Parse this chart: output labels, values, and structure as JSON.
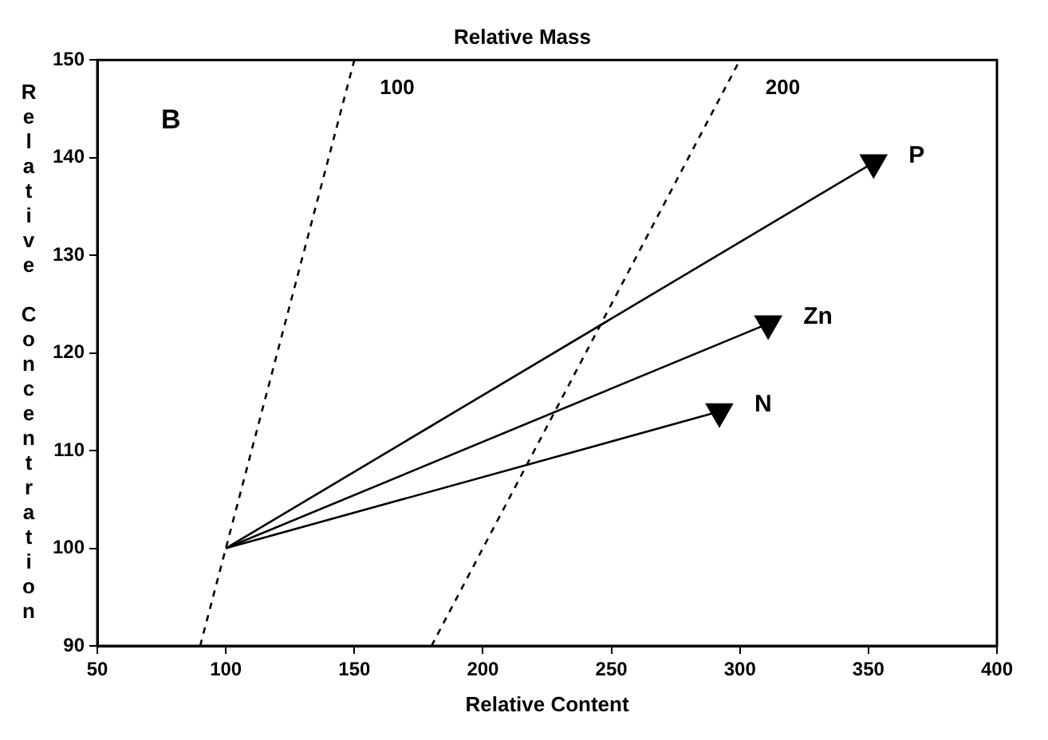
{
  "chart_data": {
    "type": "line",
    "title": "Relative Mass",
    "xlabel": "Relative Content",
    "ylabel": "Relative Concentration",
    "xlim": [
      50,
      400
    ],
    "xticks": [
      50,
      100,
      150,
      200,
      250,
      300,
      350,
      400
    ],
    "ylim": [
      90,
      150
    ],
    "yticks": [
      90,
      100,
      110,
      120,
      130,
      140,
      150
    ],
    "grid": false,
    "legend": false,
    "series": [
      {
        "name": "100",
        "x": [
          90,
          150
        ],
        "values": [
          90,
          150
        ],
        "color": "#000000",
        "line_style": "dashed",
        "marker": "none"
      },
      {
        "name": "200",
        "x": [
          180,
          300
        ],
        "values": [
          90,
          150
        ],
        "color": "#000000",
        "line_style": "dashed",
        "marker": "none"
      },
      {
        "name": "P",
        "x": [
          100,
          352
        ],
        "values": [
          100,
          139.5
        ],
        "color": "#000000",
        "line_style": "solid",
        "marker": "triangle"
      },
      {
        "name": "Zn",
        "x": [
          100,
          311
        ],
        "values": [
          100,
          123
        ],
        "color": "#000000",
        "line_style": "solid",
        "marker": "triangle"
      },
      {
        "name": "N",
        "x": [
          100,
          292
        ],
        "values": [
          100,
          114
        ],
        "color": "#000000",
        "line_style": "solid",
        "marker": "triangle"
      }
    ],
    "annotations": [
      "B"
    ]
  }
}
